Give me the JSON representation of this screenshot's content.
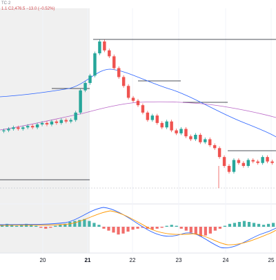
{
  "legend": {
    "symbol_suffix": "TC·2",
    "value_prefix": "1.1",
    "last_price": "C2,476.5",
    "change": "−13.0 (−0.52%)"
  },
  "xaxis": {
    "labels": [
      "20",
      "21",
      "22",
      "23",
      "24",
      "25"
    ]
  },
  "colors": {
    "up": "#26a69a",
    "down": "#ef5350",
    "ma_fast": "#2962ff",
    "ma_slow": "#9c27b0",
    "macd_line": "#2962ff",
    "signal_line": "#ff9800",
    "hist_up": "#26a69a",
    "hist_down": "#ef5350",
    "highlight": "#f0f0f0",
    "level": "#131722"
  },
  "chart_data": {
    "type": "candlestick",
    "x_categories": [
      "20",
      "21",
      "22",
      "23",
      "24",
      "25"
    ],
    "price_series": {
      "name": "",
      "close_approx": [
        2498,
        2499,
        2500,
        2499,
        2500,
        2501,
        2500,
        2502,
        2503,
        2502,
        2504,
        2503,
        2505,
        2504,
        2505,
        2510,
        2525,
        2530,
        2535,
        2550,
        2558,
        2552,
        2548,
        2540,
        2534,
        2528,
        2520,
        2518,
        2515,
        2510,
        2505,
        2508,
        2503,
        2500,
        2504,
        2498,
        2496,
        2499,
        2494,
        2492,
        2495,
        2490,
        2492,
        2488,
        2486,
        2480,
        2474,
        2470,
        2478,
        2476,
        2474,
        2478,
        2477,
        2476,
        2480,
        2477,
        2476
      ]
    },
    "horizontal_levels": [
      "upper",
      "mid-upper",
      "mid",
      "lower-mid",
      "support"
    ],
    "indicator": {
      "type": "macd",
      "series": [
        "MACD",
        "Signal",
        "Histogram"
      ]
    }
  }
}
